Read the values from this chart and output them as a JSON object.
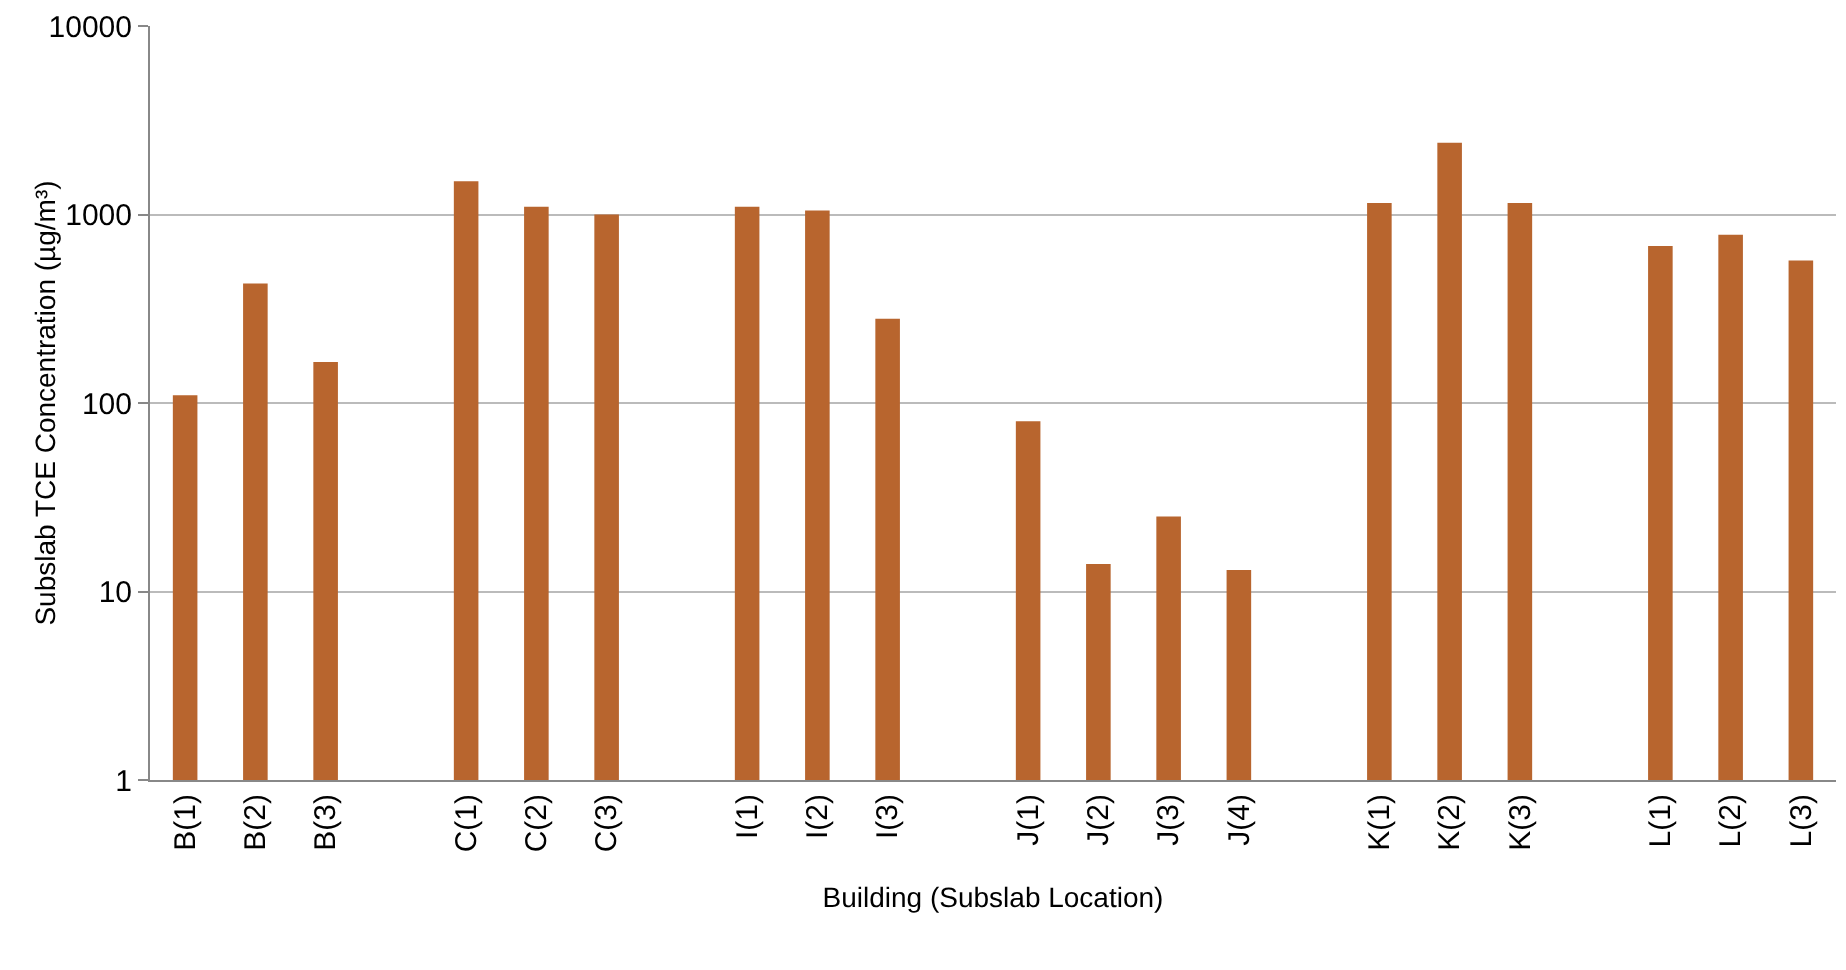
{
  "chart_data": {
    "type": "bar",
    "xlabel": "Building (Subslab Location)",
    "ylabel": "Subslab TCE Concentration (µg/m³)",
    "categories": [
      "B(1)",
      "B(2)",
      "B(3)",
      null,
      "C(1)",
      "C(2)",
      "C(3)",
      null,
      "I(1)",
      "I(2)",
      "I(3)",
      null,
      "J(1)",
      "J(2)",
      "J(3)",
      "J(4)",
      null,
      "K(1)",
      "K(2)",
      "K(3)",
      null,
      "L(1)",
      "L(2)",
      "L(3)"
    ],
    "values": [
      110,
      430,
      165,
      null,
      1500,
      1100,
      1000,
      null,
      1100,
      1050,
      280,
      null,
      80,
      14,
      25,
      13,
      null,
      1150,
      2400,
      1150,
      null,
      680,
      780,
      570
    ],
    "color": "#b8652e",
    "log": true,
    "ylim": [
      1,
      10000
    ],
    "yticks": [
      1,
      10,
      100,
      1000,
      10000
    ],
    "grid": "y"
  }
}
